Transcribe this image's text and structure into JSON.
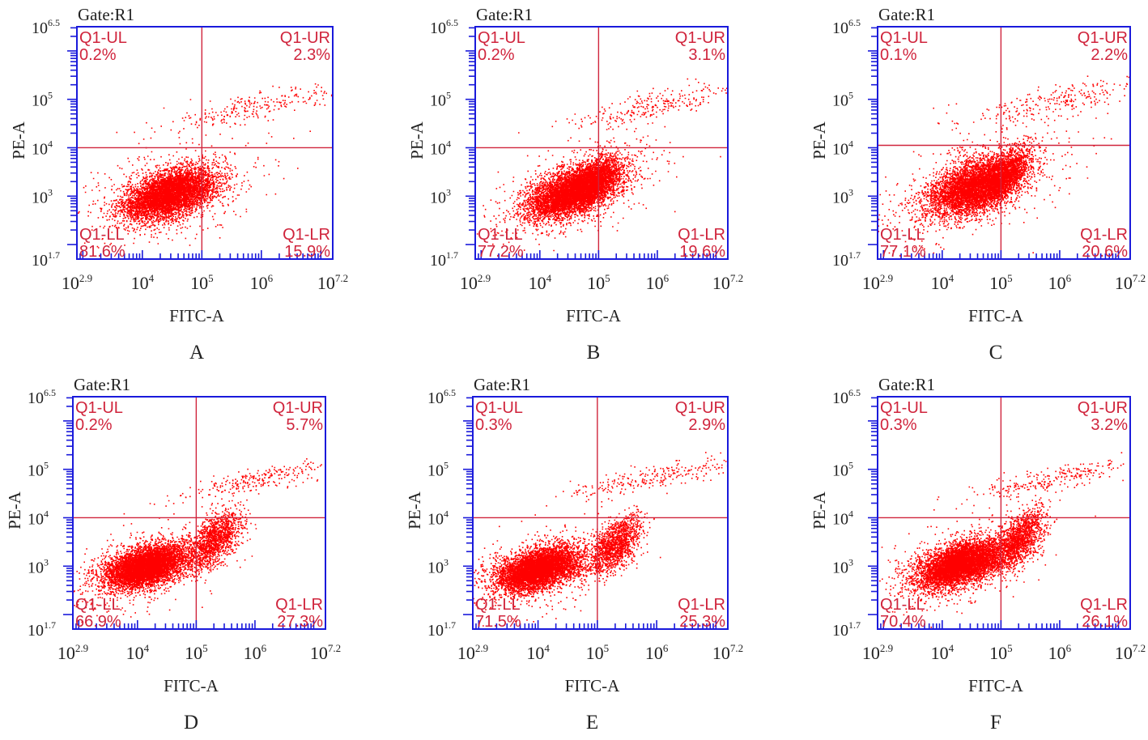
{
  "figure": {
    "layout": "2 rows x 3 columns of flow cytometry dot plots",
    "colors": {
      "axis": "#1a1adb",
      "gate": "#d0243c",
      "dots": "#ff0000",
      "text": "#222222"
    }
  },
  "chart_data": [
    {
      "type": "scatter",
      "panel_label": "A",
      "gate_title": "Gate:R1",
      "xlabel": "FITC-A",
      "ylabel": "PE-A",
      "x_scale": "log",
      "y_scale": "log",
      "xlim_log10": [
        2.9,
        7.2
      ],
      "ylim_log10": [
        1.7,
        6.5
      ],
      "x_ticks": [
        {
          "base": "10",
          "exp": "2.9",
          "log": 2.9
        },
        {
          "base": "10",
          "exp": "4",
          "log": 4
        },
        {
          "base": "10",
          "exp": "5",
          "log": 5
        },
        {
          "base": "10",
          "exp": "6",
          "log": 6
        },
        {
          "base": "10",
          "exp": "7.2",
          "log": 7.2
        }
      ],
      "y_ticks": [
        {
          "base": "10",
          "exp": "6.5",
          "log": 6.5
        },
        {
          "base": "10",
          "exp": "5",
          "log": 5
        },
        {
          "base": "10",
          "exp": "4",
          "log": 4
        },
        {
          "base": "10",
          "exp": "3",
          "log": 3
        },
        {
          "base": "10",
          "exp": "1.7",
          "log": 1.7
        }
      ],
      "gate_x_log10": 5.0,
      "gate_y_log10": 4.0,
      "quadrants": [
        {
          "name": "Q1-UL",
          "value": "0.2%",
          "pos": "top-left"
        },
        {
          "name": "Q1-UR",
          "value": "2.3%",
          "pos": "top-right"
        },
        {
          "name": "Q1-LL",
          "value": "81.6%",
          "pos": "bottom-left"
        },
        {
          "name": "Q1-LR",
          "value": "15.9%",
          "pos": "bottom-right"
        }
      ]
    },
    {
      "type": "scatter",
      "panel_label": "B",
      "gate_title": "Gate:R1",
      "xlabel": "FITC-A",
      "ylabel": "PE-A",
      "x_scale": "log",
      "y_scale": "log",
      "xlim_log10": [
        2.9,
        7.2
      ],
      "ylim_log10": [
        1.7,
        6.5
      ],
      "x_ticks": [
        {
          "base": "10",
          "exp": "2.9",
          "log": 2.9
        },
        {
          "base": "10",
          "exp": "4",
          "log": 4
        },
        {
          "base": "10",
          "exp": "5",
          "log": 5
        },
        {
          "base": "10",
          "exp": "6",
          "log": 6
        },
        {
          "base": "10",
          "exp": "7.2",
          "log": 7.2
        }
      ],
      "y_ticks": [
        {
          "base": "10",
          "exp": "6.5",
          "log": 6.5
        },
        {
          "base": "10",
          "exp": "5",
          "log": 5
        },
        {
          "base": "10",
          "exp": "4",
          "log": 4
        },
        {
          "base": "10",
          "exp": "3",
          "log": 3
        },
        {
          "base": "10",
          "exp": "1.7",
          "log": 1.7
        }
      ],
      "gate_x_log10": 5.0,
      "gate_y_log10": 4.0,
      "quadrants": [
        {
          "name": "Q1-UL",
          "value": "0.2%",
          "pos": "top-left"
        },
        {
          "name": "Q1-UR",
          "value": "3.1%",
          "pos": "top-right"
        },
        {
          "name": "Q1-LL",
          "value": "77.2%",
          "pos": "bottom-left"
        },
        {
          "name": "Q1-LR",
          "value": "19.6%",
          "pos": "bottom-right"
        }
      ]
    },
    {
      "type": "scatter",
      "panel_label": "C",
      "gate_title": "Gate:R1",
      "xlabel": "FITC-A",
      "ylabel": "PE-A",
      "x_scale": "log",
      "y_scale": "log",
      "xlim_log10": [
        2.9,
        7.2
      ],
      "ylim_log10": [
        1.7,
        6.5
      ],
      "x_ticks": [
        {
          "base": "10",
          "exp": "2.9",
          "log": 2.9
        },
        {
          "base": "10",
          "exp": "4",
          "log": 4
        },
        {
          "base": "10",
          "exp": "5",
          "log": 5
        },
        {
          "base": "10",
          "exp": "6",
          "log": 6
        },
        {
          "base": "10",
          "exp": "7.2",
          "log": 7.2
        }
      ],
      "y_ticks": [
        {
          "base": "10",
          "exp": "6.5",
          "log": 6.5
        },
        {
          "base": "10",
          "exp": "5",
          "log": 5
        },
        {
          "base": "10",
          "exp": "4",
          "log": 4
        },
        {
          "base": "10",
          "exp": "3",
          "log": 3
        },
        {
          "base": "10",
          "exp": "1.7",
          "log": 1.7
        }
      ],
      "gate_x_log10": 5.0,
      "gate_y_log10": 4.05,
      "quadrants": [
        {
          "name": "Q1-UL",
          "value": "0.1%",
          "pos": "top-left"
        },
        {
          "name": "Q1-UR",
          "value": "2.2%",
          "pos": "top-right"
        },
        {
          "name": "Q1-LL",
          "value": "77.1%",
          "pos": "bottom-left"
        },
        {
          "name": "Q1-LR",
          "value": "20.6%",
          "pos": "bottom-right"
        }
      ]
    },
    {
      "type": "scatter",
      "panel_label": "D",
      "gate_title": "Gate:R1",
      "xlabel": "FITC-A",
      "ylabel": "PE-A",
      "x_scale": "log",
      "y_scale": "log",
      "xlim_log10": [
        2.9,
        7.2
      ],
      "ylim_log10": [
        1.7,
        6.5
      ],
      "x_ticks": [
        {
          "base": "10",
          "exp": "2.9",
          "log": 2.9
        },
        {
          "base": "10",
          "exp": "4",
          "log": 4
        },
        {
          "base": "10",
          "exp": "5",
          "log": 5
        },
        {
          "base": "10",
          "exp": "6",
          "log": 6
        },
        {
          "base": "10",
          "exp": "7.2",
          "log": 7.2
        }
      ],
      "y_ticks": [
        {
          "base": "10",
          "exp": "6.5",
          "log": 6.5
        },
        {
          "base": "10",
          "exp": "5",
          "log": 5
        },
        {
          "base": "10",
          "exp": "4",
          "log": 4
        },
        {
          "base": "10",
          "exp": "3",
          "log": 3
        },
        {
          "base": "10",
          "exp": "1.7",
          "log": 1.7
        }
      ],
      "gate_x_log10": 5.0,
      "gate_y_log10": 4.0,
      "quadrants": [
        {
          "name": "Q1-UL",
          "value": "0.2%",
          "pos": "top-left"
        },
        {
          "name": "Q1-UR",
          "value": "5.7%",
          "pos": "top-right"
        },
        {
          "name": "Q1-LL",
          "value": "66.9%",
          "pos": "bottom-left"
        },
        {
          "name": "Q1-LR",
          "value": "27.3%",
          "pos": "bottom-right"
        }
      ]
    },
    {
      "type": "scatter",
      "panel_label": "E",
      "gate_title": "Gate:R1",
      "xlabel": "FITC-A",
      "ylabel": "PE-A",
      "x_scale": "log",
      "y_scale": "log",
      "xlim_log10": [
        2.9,
        7.2
      ],
      "ylim_log10": [
        1.7,
        6.5
      ],
      "x_ticks": [
        {
          "base": "10",
          "exp": "2.9",
          "log": 2.9
        },
        {
          "base": "10",
          "exp": "4",
          "log": 4
        },
        {
          "base": "10",
          "exp": "5",
          "log": 5
        },
        {
          "base": "10",
          "exp": "6",
          "log": 6
        },
        {
          "base": "10",
          "exp": "7.2",
          "log": 7.2
        }
      ],
      "y_ticks": [
        {
          "base": "10",
          "exp": "6.5",
          "log": 6.5
        },
        {
          "base": "10",
          "exp": "5",
          "log": 5
        },
        {
          "base": "10",
          "exp": "4",
          "log": 4
        },
        {
          "base": "10",
          "exp": "3",
          "log": 3
        },
        {
          "base": "10",
          "exp": "1.7",
          "log": 1.7
        }
      ],
      "gate_x_log10": 5.0,
      "gate_y_log10": 4.0,
      "quadrants": [
        {
          "name": "Q1-UL",
          "value": "0.3%",
          "pos": "top-left"
        },
        {
          "name": "Q1-UR",
          "value": "2.9%",
          "pos": "top-right"
        },
        {
          "name": "Q1-LL",
          "value": "71.5%",
          "pos": "bottom-left"
        },
        {
          "name": "Q1-LR",
          "value": "25.3%",
          "pos": "bottom-right"
        }
      ]
    },
    {
      "type": "scatter",
      "panel_label": "F",
      "gate_title": "Gate:R1",
      "xlabel": "FITC-A",
      "ylabel": "PE-A",
      "x_scale": "log",
      "y_scale": "log",
      "xlim_log10": [
        2.9,
        7.2
      ],
      "ylim_log10": [
        1.7,
        6.5
      ],
      "x_ticks": [
        {
          "base": "10",
          "exp": "2.9",
          "log": 2.9
        },
        {
          "base": "10",
          "exp": "4",
          "log": 4
        },
        {
          "base": "10",
          "exp": "5",
          "log": 5
        },
        {
          "base": "10",
          "exp": "6",
          "log": 6
        },
        {
          "base": "10",
          "exp": "7.2",
          "log": 7.2
        }
      ],
      "y_ticks": [
        {
          "base": "10",
          "exp": "6.5",
          "log": 6.5
        },
        {
          "base": "10",
          "exp": "5",
          "log": 5
        },
        {
          "base": "10",
          "exp": "4",
          "log": 4
        },
        {
          "base": "10",
          "exp": "3",
          "log": 3
        },
        {
          "base": "10",
          "exp": "1.7",
          "log": 1.7
        }
      ],
      "gate_x_log10": 5.0,
      "gate_y_log10": 4.0,
      "quadrants": [
        {
          "name": "Q1-UL",
          "value": "0.3%",
          "pos": "top-left"
        },
        {
          "name": "Q1-UR",
          "value": "3.2%",
          "pos": "top-right"
        },
        {
          "name": "Q1-LL",
          "value": "70.4%",
          "pos": "bottom-left"
        },
        {
          "name": "Q1-LR",
          "value": "26.1%",
          "pos": "bottom-right"
        }
      ]
    }
  ]
}
